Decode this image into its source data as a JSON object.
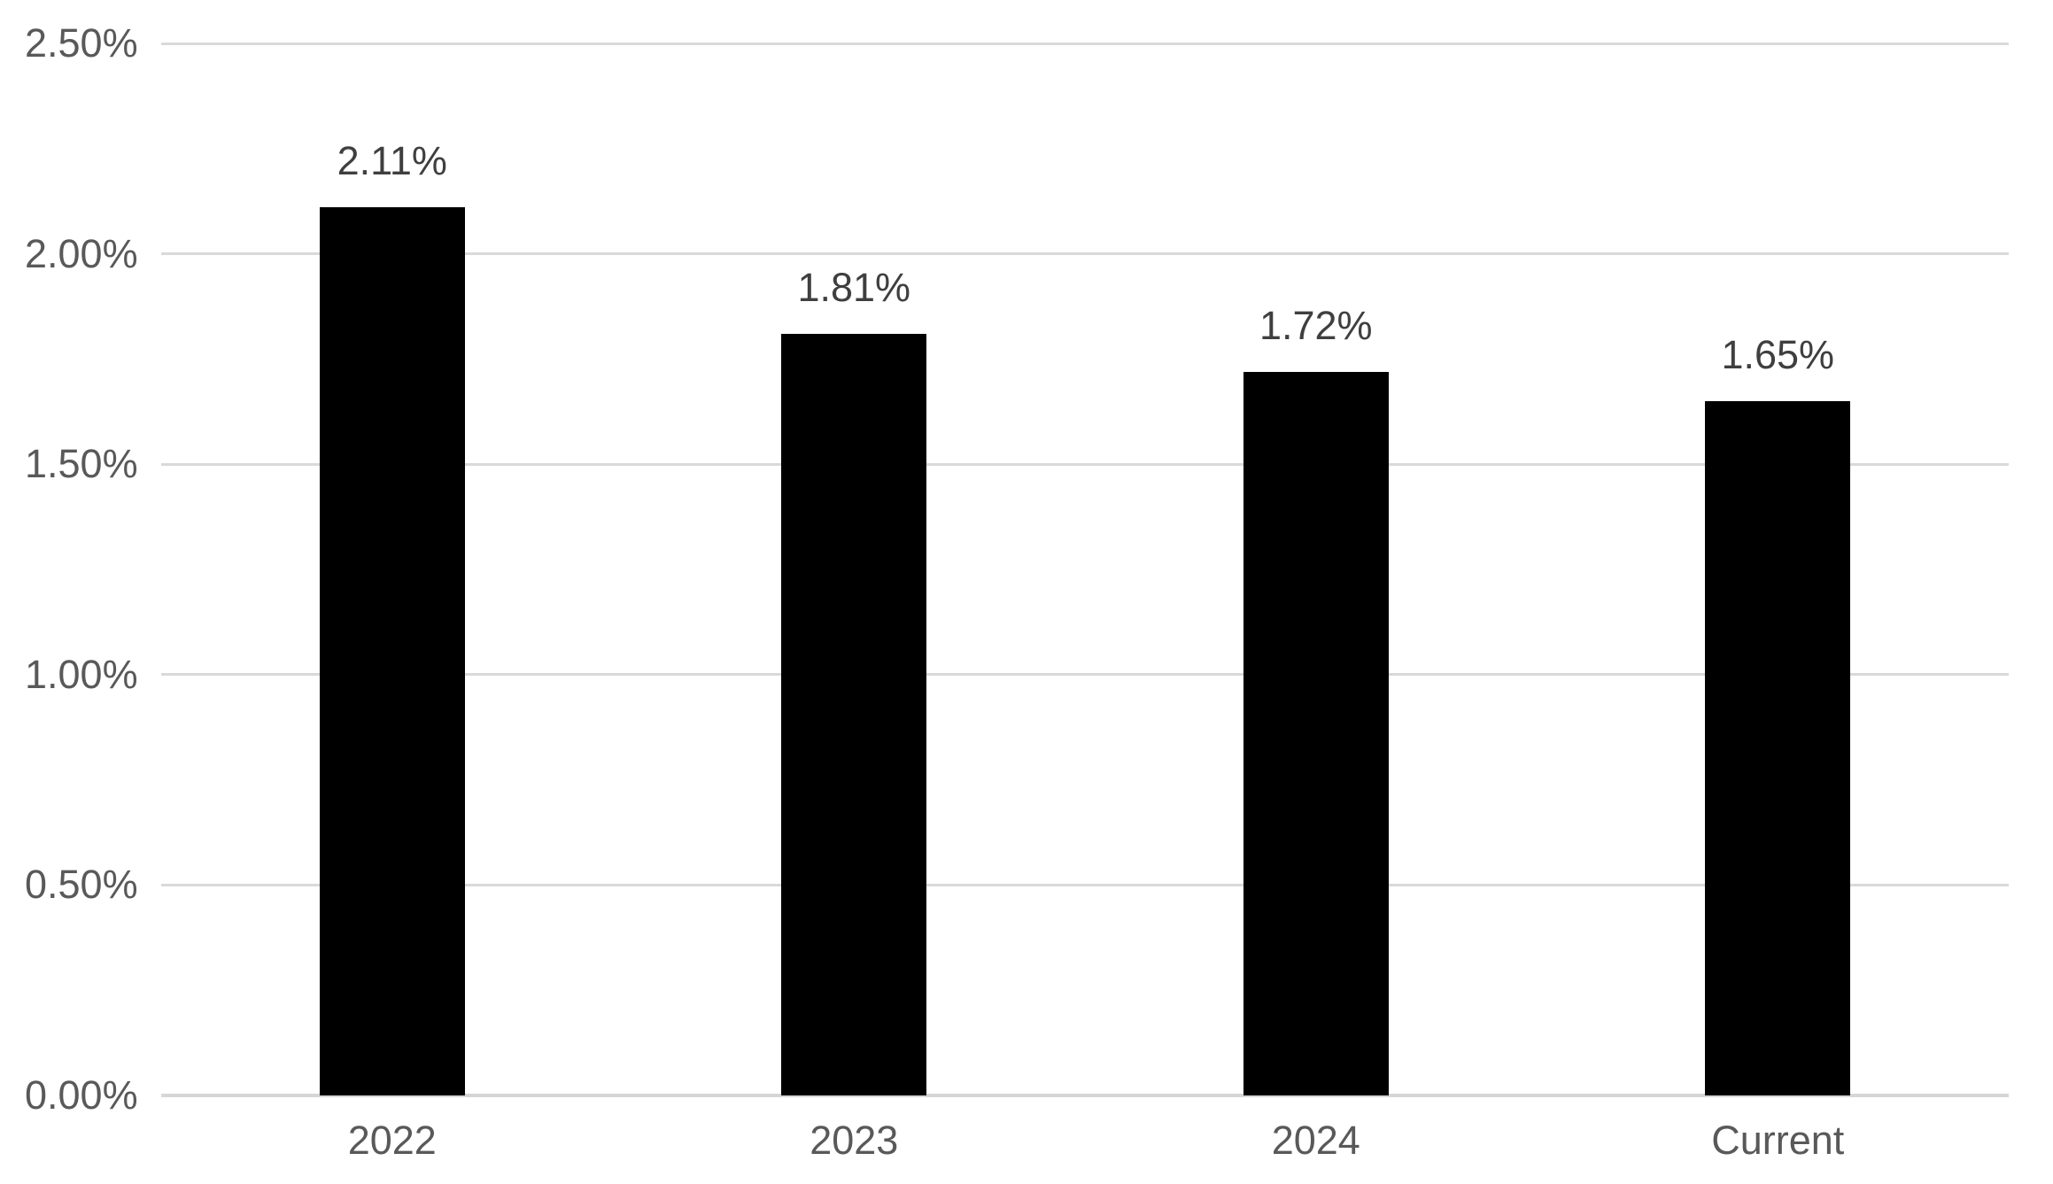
{
  "chart_data": {
    "type": "bar",
    "title": "",
    "xlabel": "",
    "ylabel": "",
    "categories": [
      "2022",
      "2023",
      "2024",
      "Current"
    ],
    "values": [
      2.11,
      1.81,
      1.72,
      1.65
    ],
    "data_labels": [
      "2.11%",
      "1.81%",
      "1.72%",
      "1.65%"
    ],
    "bars": [
      {
        "category": "2022",
        "value": 2.11,
        "label": "2.11%"
      },
      {
        "category": "2023",
        "value": 1.81,
        "label": "1.81%"
      },
      {
        "category": "2024",
        "value": 1.72,
        "label": "1.72%"
      },
      {
        "category": "Current",
        "value": 1.65,
        "label": "1.65%"
      }
    ],
    "ylim": [
      0,
      2.5
    ],
    "y_tick_step": 0.5,
    "y_ticks": [
      {
        "value": 0.0,
        "label": "0.00%"
      },
      {
        "value": 0.5,
        "label": "0.50%"
      },
      {
        "value": 1.0,
        "label": "1.00%"
      },
      {
        "value": 1.5,
        "label": "1.50%"
      },
      {
        "value": 2.0,
        "label": "2.00%"
      },
      {
        "value": 2.5,
        "label": "2.50%"
      }
    ],
    "grid": "horizontal",
    "legend": "none",
    "colors": {
      "bar": "#000000",
      "background": "#ffffff",
      "gridline": "#d9d9d9",
      "axis_line": "#d6d6d6",
      "tick_label": "#595959",
      "data_label": "#3f3f3f"
    }
  }
}
